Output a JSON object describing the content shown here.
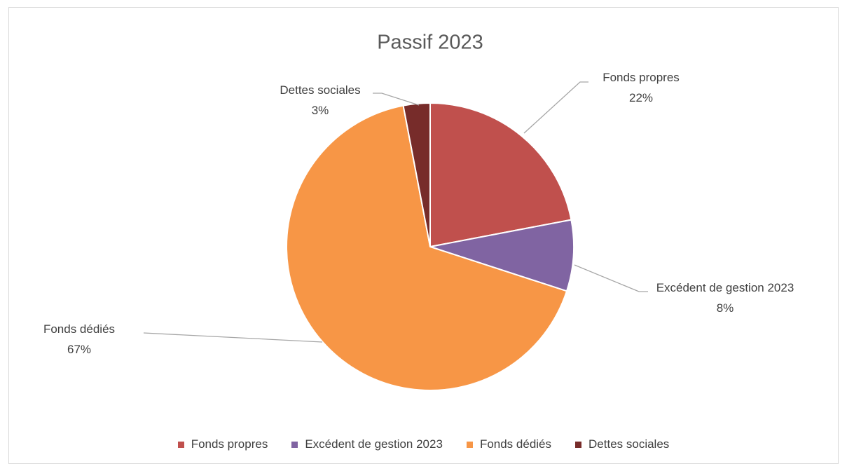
{
  "chart_data": {
    "type": "pie",
    "title": "Passif 2023",
    "categories": [
      "Fonds propres",
      "Excédent de gestion 2023",
      "Fonds dédiés",
      "Dettes sociales"
    ],
    "values": [
      22,
      8,
      67,
      3
    ],
    "value_labels": [
      "22%",
      "8%",
      "67%",
      "3%"
    ],
    "colors": [
      "#c0504d",
      "#8064a2",
      "#f79646",
      "#772c2a"
    ],
    "legend": "bottom"
  }
}
